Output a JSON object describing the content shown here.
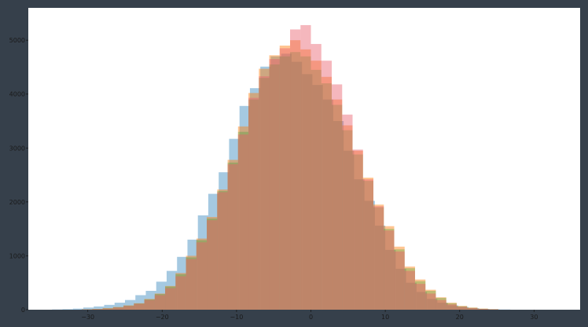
{
  "chart_data": {
    "type": "bar",
    "subtype": "overlaid-histogram",
    "bin_width": 1.4,
    "bin_start": -30.8,
    "xlim": [
      -38,
      36.2
    ],
    "ylim": [
      0,
      5600
    ],
    "xticks": [
      -30,
      -20,
      -10,
      0,
      10,
      20,
      30
    ],
    "yticks": [
      0,
      1000,
      2000,
      3000,
      4000,
      5000
    ],
    "xtick_labels": [
      "−30",
      "−20",
      "−10",
      "0",
      "10",
      "20",
      "30"
    ],
    "ytick_labels": [
      "0",
      "1000",
      "2000",
      "3000",
      "4000",
      "5000"
    ],
    "title": "",
    "xlabel": "",
    "ylabel": "",
    "grid": false,
    "series": [
      {
        "color": "#1f77b4",
        "opacity": 0.4,
        "start": -34.8,
        "counts": [
          5,
          10,
          20,
          40,
          60,
          90,
          130,
          180,
          270,
          350,
          520,
          720,
          980,
          1300,
          1750,
          2150,
          2550,
          3170,
          3780,
          4110,
          4510,
          4700,
          4750,
          4600,
          4370,
          4170,
          3900,
          3500,
          2950,
          2420,
          2020,
          1560,
          1110,
          760,
          500,
          330,
          200,
          130,
          80,
          50,
          30,
          15,
          8,
          4
        ]
      },
      {
        "color": "#ff7f0e",
        "opacity": 0.45,
        "start": -30.8,
        "counts": [
          8,
          15,
          30,
          50,
          80,
          120,
          200,
          300,
          440,
          680,
          1000,
          1320,
          1720,
          2230,
          2780,
          3400,
          4020,
          4470,
          4720,
          4900,
          5000,
          4830,
          4620,
          4320,
          3900,
          3420,
          2950,
          2450,
          1950,
          1550,
          1170,
          800,
          560,
          370,
          230,
          130,
          70,
          40,
          20,
          10
        ]
      },
      {
        "color": "#2ca02c",
        "opacity": 0.3,
        "start": -30.8,
        "counts": [
          6,
          12,
          25,
          45,
          75,
          115,
          190,
          290,
          430,
          660,
          970,
          1290,
          1690,
          2200,
          2730,
          3300,
          3900,
          4300,
          4550,
          4700,
          4780,
          4700,
          4450,
          4200,
          3800,
          3330,
          2880,
          2390,
          1900,
          1500,
          1120,
          770,
          530,
          350,
          220,
          120,
          65,
          35,
          18,
          8
        ]
      },
      {
        "color": "#e8606c",
        "opacity": 0.45,
        "start": -30.8,
        "counts": [
          5,
          10,
          20,
          40,
          70,
          110,
          180,
          270,
          400,
          620,
          940,
          1250,
          1660,
          2180,
          2700,
          3250,
          3930,
          4330,
          4650,
          4850,
          5200,
          5280,
          4930,
          4620,
          4180,
          3620,
          2970,
          2420,
          1920,
          1470,
          1080,
          720,
          480,
          300,
          180,
          100,
          55,
          30,
          15,
          7
        ]
      }
    ]
  }
}
